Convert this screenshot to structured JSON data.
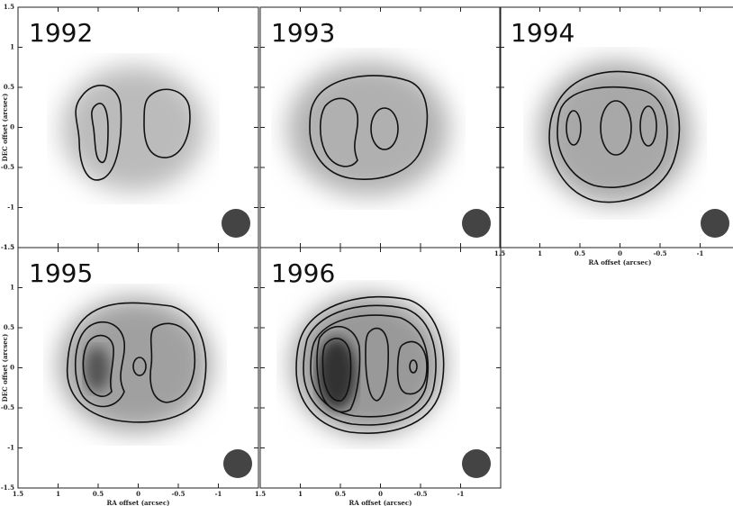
{
  "panels": [
    {
      "label": "1992"
    },
    {
      "label": "1993"
    },
    {
      "label": "1994"
    },
    {
      "label": "1995"
    },
    {
      "label": "1996"
    }
  ],
  "x_axis": {
    "label": "RA offset (arcsec)",
    "lim": [
      1.5,
      -1.5
    ],
    "ticks": [
      1.5,
      1,
      0.5,
      0,
      -0.5,
      -1
    ]
  },
  "y_axis": {
    "label": "DEC offset (arcsec)",
    "lim": [
      -1.5,
      1.5
    ],
    "ticks": [
      1.5,
      1,
      0.5,
      0,
      -0.5,
      -1,
      -1.5
    ]
  }
}
